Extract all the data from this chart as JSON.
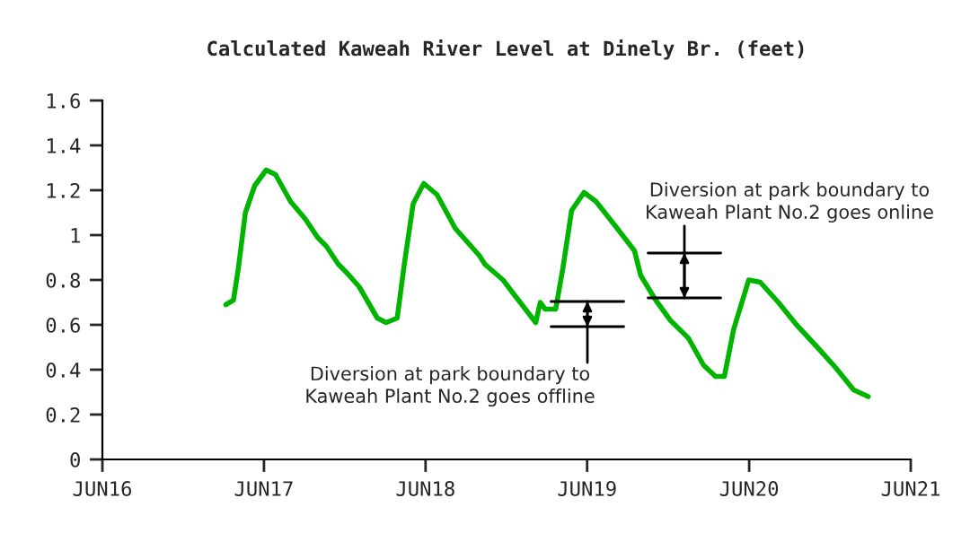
{
  "chart_data": {
    "type": "line",
    "title": "Calculated Kaweah River Level at Dinely Br. (feet)",
    "x": [
      "2017-03-07",
      "2017-03-24",
      "2017-04-04",
      "2017-04-20",
      "2017-05-11",
      "2017-06-06",
      "2017-06-27",
      "2017-07-31",
      "2017-09-03",
      "2017-09-30",
      "2017-10-20",
      "2017-11-16",
      "2017-12-06",
      "2018-01-02",
      "2018-02-12",
      "2018-03-04",
      "2018-03-29",
      "2018-04-14",
      "2018-05-04",
      "2018-05-28",
      "2018-06-27",
      "2018-08-07",
      "2018-09-30",
      "2018-10-13",
      "2018-11-23",
      "2018-12-20",
      "2019-02-05",
      "2019-02-15",
      "2019-02-26",
      "2019-03-22",
      "2019-04-07",
      "2019-04-27",
      "2019-05-25",
      "2019-06-21",
      "2019-07-31",
      "2019-09-16",
      "2019-09-30",
      "2019-11-03",
      "2019-12-06",
      "2020-01-16",
      "2020-02-19",
      "2020-03-17",
      "2020-04-06",
      "2020-04-27",
      "2020-05-31",
      "2020-06-26",
      "2020-08-06",
      "2020-09-16",
      "2020-11-02",
      "2020-12-13",
      "2021-01-23",
      "2021-02-25"
    ],
    "series": [
      {
        "color": "#00b400",
        "values": [
          0.69,
          0.71,
          0.85,
          1.1,
          1.22,
          1.29,
          1.27,
          1.15,
          1.07,
          0.99,
          0.95,
          0.87,
          0.83,
          0.77,
          0.63,
          0.61,
          0.63,
          0.87,
          1.14,
          1.23,
          1.18,
          1.03,
          0.91,
          0.87,
          0.8,
          0.73,
          0.61,
          0.7,
          0.67,
          0.67,
          0.85,
          1.11,
          1.19,
          1.15,
          1.05,
          0.93,
          0.82,
          0.71,
          0.62,
          0.54,
          0.42,
          0.37,
          0.37,
          0.58,
          0.8,
          0.79,
          0.7,
          0.6,
          0.5,
          0.41,
          0.31,
          0.28
        ]
      }
    ],
    "xlim": [
      "2016-06-01",
      "2021-06-01"
    ],
    "xticks": [
      {
        "value": "2016-06-01",
        "label": "JUN16"
      },
      {
        "value": "2017-06-01",
        "label": "JUN17"
      },
      {
        "value": "2018-06-01",
        "label": "JUN18"
      },
      {
        "value": "2019-06-01",
        "label": "JUN19"
      },
      {
        "value": "2020-06-01",
        "label": "JUN20"
      },
      {
        "value": "2021-06-01",
        "label": "JUN21"
      }
    ],
    "ylim": [
      0,
      1.6
    ],
    "yticks": [
      0,
      0.2,
      0.4,
      0.6,
      0.8,
      1,
      1.2,
      1.4,
      1.6
    ],
    "grid": false,
    "marker": "none",
    "line_style": "solid",
    "annotations": [
      "Diversion at park boundary to\nKaweah Plant No.2 goes offline",
      "Diversion at park boundary to\nKaweah Plant No.2 goes online"
    ]
  }
}
